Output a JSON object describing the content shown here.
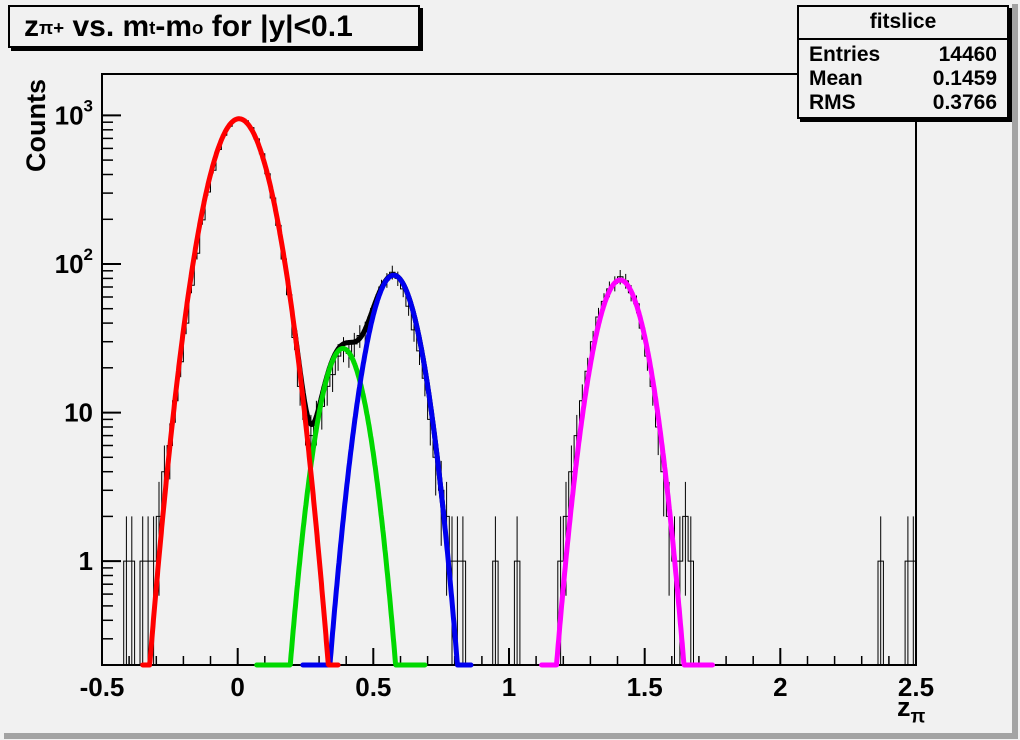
{
  "window": {
    "colors": {
      "canvas_bg": "#f1f1f1",
      "canvas_shadow": "#a3a3a3",
      "frame_line": "#000000",
      "pave_bg": "#f1f1f1"
    }
  },
  "title_box": {
    "p1": "z",
    "p1s": "π+",
    "p2": " vs. m",
    "p2s": "t",
    "p3": "-m",
    "p3s": "o",
    "p4": " for |y|<0.1"
  },
  "stats_box": {
    "title": "fitslice",
    "rows": [
      {
        "label": "Entries",
        "value": "14460"
      },
      {
        "label": "Mean",
        "value": "0.1459"
      },
      {
        "label": "RMS",
        "value": "0.3766"
      }
    ]
  },
  "chart_data": {
    "type": "bar",
    "subtype": "histogram-log-y-with-gaussian-fits",
    "title": "z_π+ vs. m_t-m_o for |y|<0.1",
    "histogram_name": "fitslice",
    "grid": false,
    "legend_position": "none",
    "x_axis": {
      "label": "z",
      "label_sub": "π",
      "min": -0.5,
      "max": 2.5,
      "majors": [
        {
          "v": -0.5,
          "label": "-0.5"
        },
        {
          "v": 0,
          "label": "0"
        },
        {
          "v": 0.5,
          "label": "0.5"
        },
        {
          "v": 1,
          "label": "1"
        },
        {
          "v": 1.5,
          "label": "1.5"
        },
        {
          "v": 2,
          "label": "2"
        },
        {
          "v": 2.5,
          "label": "2.5"
        }
      ],
      "minor_step": 0.1
    },
    "y_axis": {
      "label": "Counts",
      "scale": "log",
      "min": 0.2,
      "max": 1900,
      "majors": [
        {
          "v": 1,
          "base": "1",
          "exp": ""
        },
        {
          "v": 10,
          "base": "10",
          "exp": ""
        },
        {
          "v": 100,
          "base": "10",
          "exp": "2"
        },
        {
          "v": 1000,
          "base": "10",
          "exp": "3"
        }
      ]
    },
    "bin_width": 0.02,
    "bins": [
      [
        -0.41,
        1
      ],
      [
        -0.39,
        1
      ],
      [
        -0.35,
        1
      ],
      [
        -0.33,
        1
      ],
      [
        -0.31,
        1
      ],
      [
        -0.29,
        2
      ],
      [
        -0.27,
        4
      ],
      [
        -0.25,
        6
      ],
      [
        -0.23,
        12
      ],
      [
        -0.21,
        22
      ],
      [
        -0.19,
        40
      ],
      [
        -0.17,
        72
      ],
      [
        -0.15,
        118
      ],
      [
        -0.13,
        198
      ],
      [
        -0.11,
        305
      ],
      [
        -0.09,
        428
      ],
      [
        -0.07,
        590
      ],
      [
        -0.05,
        735
      ],
      [
        -0.03,
        845
      ],
      [
        -0.01,
        928
      ],
      [
        0.01,
        952
      ],
      [
        0.03,
        918
      ],
      [
        0.05,
        828
      ],
      [
        0.07,
        695
      ],
      [
        0.09,
        552
      ],
      [
        0.11,
        405
      ],
      [
        0.13,
        278
      ],
      [
        0.15,
        182
      ],
      [
        0.17,
        108
      ],
      [
        0.19,
        62
      ],
      [
        0.21,
        32
      ],
      [
        0.23,
        15
      ],
      [
        0.25,
        9
      ],
      [
        0.27,
        7
      ],
      [
        0.29,
        9
      ],
      [
        0.31,
        11
      ],
      [
        0.33,
        15
      ],
      [
        0.35,
        18
      ],
      [
        0.37,
        24
      ],
      [
        0.39,
        27
      ],
      [
        0.41,
        25
      ],
      [
        0.43,
        29
      ],
      [
        0.45,
        33
      ],
      [
        0.47,
        35
      ],
      [
        0.49,
        44
      ],
      [
        0.51,
        55
      ],
      [
        0.53,
        70
      ],
      [
        0.55,
        78
      ],
      [
        0.57,
        88
      ],
      [
        0.59,
        80
      ],
      [
        0.61,
        68
      ],
      [
        0.63,
        52
      ],
      [
        0.65,
        36
      ],
      [
        0.67,
        26
      ],
      [
        0.69,
        17
      ],
      [
        0.71,
        9
      ],
      [
        0.73,
        5
      ],
      [
        0.75,
        3
      ],
      [
        0.77,
        2
      ],
      [
        0.79,
        1
      ],
      [
        0.81,
        1
      ],
      [
        0.83,
        1
      ],
      [
        0.95,
        1
      ],
      [
        1.03,
        1
      ],
      [
        1.19,
        1
      ],
      [
        1.21,
        2
      ],
      [
        1.23,
        4
      ],
      [
        1.25,
        7
      ],
      [
        1.27,
        12
      ],
      [
        1.29,
        19
      ],
      [
        1.31,
        30
      ],
      [
        1.33,
        44
      ],
      [
        1.35,
        56
      ],
      [
        1.37,
        68
      ],
      [
        1.39,
        74
      ],
      [
        1.41,
        82
      ],
      [
        1.43,
        77
      ],
      [
        1.45,
        64
      ],
      [
        1.47,
        54
      ],
      [
        1.49,
        37
      ],
      [
        1.51,
        24
      ],
      [
        1.53,
        15
      ],
      [
        1.55,
        8
      ],
      [
        1.57,
        4
      ],
      [
        1.59,
        2
      ],
      [
        1.61,
        1
      ],
      [
        1.63,
        1
      ],
      [
        1.65,
        2
      ],
      [
        1.67,
        1
      ],
      [
        2.37,
        1
      ],
      [
        2.47,
        1
      ],
      [
        2.49,
        1
      ]
    ],
    "curves": [
      {
        "name": "total-fit",
        "color": "#000000",
        "type": "sum",
        "components": [
          "peak-red",
          "peak-green",
          "peak-blue"
        ],
        "range": [
          0.21,
          0.76
        ],
        "width": 5
      },
      {
        "name": "peak-green",
        "color": "#00d800",
        "type": "gaussian",
        "A": 27,
        "mu": 0.388,
        "sigma": 0.062,
        "range": [
          0.07,
          0.69
        ],
        "width": 5
      },
      {
        "name": "peak-blue",
        "color": "#0000ee",
        "type": "gaussian",
        "A": 84,
        "mu": 0.575,
        "sigma": 0.0676,
        "range": [
          0.24,
          0.86
        ],
        "width": 5
      },
      {
        "name": "peak-red",
        "color": "#ff0000",
        "type": "gaussian",
        "A": 950,
        "mu": 0.005,
        "sigma": 0.08,
        "range": [
          -0.35,
          0.37
        ],
        "width": 5
      },
      {
        "name": "peak-magenta",
        "color": "#ff00ff",
        "type": "gaussian",
        "A": 78,
        "mu": 1.41,
        "sigma": 0.068,
        "range": [
          1.12,
          1.75
        ],
        "width": 5
      }
    ]
  }
}
